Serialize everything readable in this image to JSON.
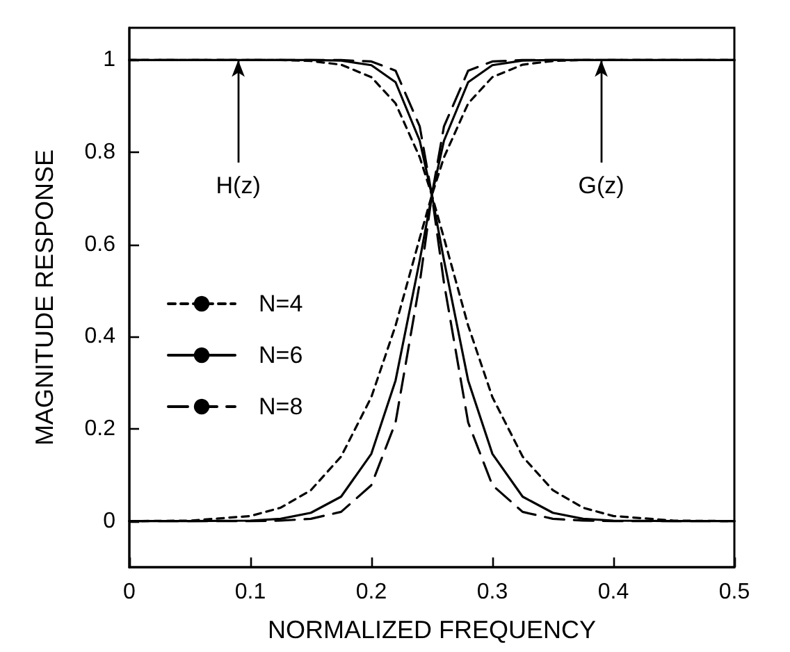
{
  "chart_data": {
    "type": "line",
    "xlabel": "NORMALIZED FREQUENCY",
    "ylabel": "MAGNITUDE RESPONSE",
    "x": [
      0,
      0.05,
      0.1,
      0.125,
      0.15,
      0.175,
      0.2,
      0.22,
      0.24,
      0.25,
      0.26,
      0.28,
      0.3,
      0.325,
      0.35,
      0.375,
      0.4,
      0.45,
      0.5
    ],
    "series": [
      {
        "name": "N=4",
        "color": "#000000",
        "line_style": "dashed",
        "values": [
          1,
          1,
          1,
          1,
          0.998,
          0.99,
          0.963,
          0.906,
          0.789,
          0.707,
          0.614,
          0.424,
          0.269,
          0.14,
          0.067,
          0.029,
          0.011,
          0.001,
          0
        ]
      },
      {
        "name": "N=6",
        "color": "#000000",
        "line_style": "solid",
        "values": [
          1,
          1,
          1,
          1,
          1,
          0.999,
          0.989,
          0.952,
          0.825,
          0.707,
          0.566,
          0.305,
          0.146,
          0.053,
          0.018,
          0.005,
          0.001,
          0,
          0
        ]
      },
      {
        "name": "N=8",
        "color": "#000000",
        "line_style": "longdash",
        "values": [
          1,
          1,
          1,
          1,
          1,
          1,
          0.997,
          0.977,
          0.856,
          0.707,
          0.517,
          0.214,
          0.078,
          0.02,
          0.005,
          0.001,
          0,
          0,
          0
        ]
      },
      {
        "color": "#000000",
        "line_style": "dashed",
        "values": [
          0,
          0.001,
          0.011,
          0.029,
          0.067,
          0.14,
          0.269,
          0.424,
          0.614,
          0.707,
          0.789,
          0.906,
          0.963,
          0.99,
          0.998,
          1,
          1,
          1,
          1
        ]
      },
      {
        "color": "#000000",
        "line_style": "solid",
        "values": [
          0,
          0,
          0.001,
          0.005,
          0.018,
          0.053,
          0.146,
          0.305,
          0.566,
          0.707,
          0.825,
          0.952,
          0.989,
          0.999,
          1,
          1,
          1,
          1,
          1
        ]
      },
      {
        "color": "#000000",
        "line_style": "longdash",
        "values": [
          0,
          0,
          0,
          0.001,
          0.005,
          0.02,
          0.078,
          0.214,
          0.517,
          0.707,
          0.856,
          0.977,
          0.997,
          1,
          1,
          1,
          1,
          1,
          1
        ]
      }
    ],
    "xlim": [
      0,
      0.5
    ],
    "xticks": [
      0,
      0.1,
      0.2,
      0.3,
      0.4,
      0.5
    ],
    "ylim": [
      -0.1,
      1.07
    ],
    "yticks": [
      0,
      0.2,
      0.4,
      0.6,
      0.8,
      1
    ],
    "annotations": [
      {
        "text": "H(z)",
        "x": 0.09,
        "y": 1
      },
      {
        "text": "G(z)",
        "x": 0.39,
        "y": 1
      }
    ],
    "grid": false,
    "legend": "left",
    "marker": "none"
  }
}
